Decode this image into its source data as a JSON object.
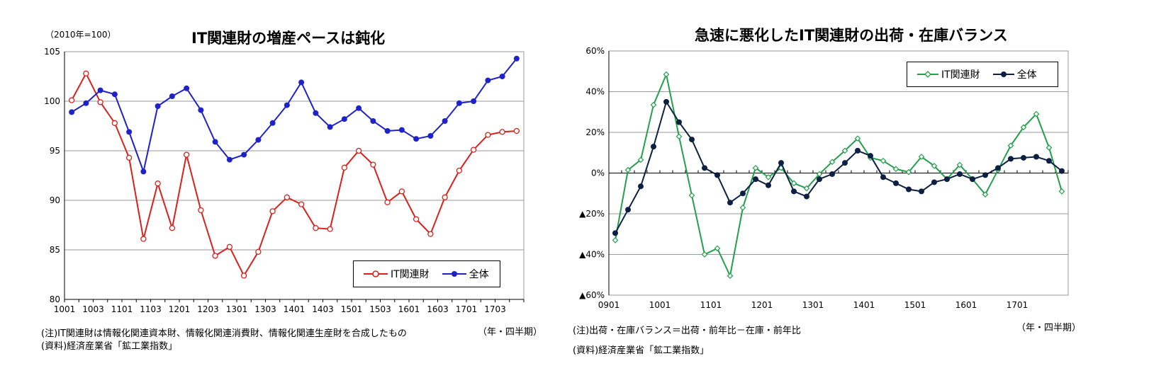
{
  "chart_data": [
    {
      "type": "line",
      "title": "IT関連財の増産ペースは鈍化",
      "unit_label": "（2010年=100）",
      "xlabel": "（年・四半期）",
      "ylim": [
        80,
        105
      ],
      "y_ticks": [
        "80",
        "85",
        "90",
        "95",
        "100",
        "105"
      ],
      "x_tick_labels": [
        "1001",
        "1003",
        "1101",
        "1103",
        "1201",
        "1203",
        "1301",
        "1303",
        "1401",
        "1403",
        "1501",
        "1503",
        "1601",
        "1603",
        "1701",
        "1703"
      ],
      "legend": "bottom-right",
      "grid": true,
      "series": [
        {
          "name": "IT関連財",
          "color": "#d9211c",
          "marker": "open-circle",
          "values": [
            100.1,
            102.8,
            99.9,
            97.8,
            94.3,
            86.1,
            91.7,
            87.2,
            94.6,
            89.0,
            84.4,
            85.3,
            82.4,
            84.8,
            88.9,
            90.3,
            89.6,
            87.2,
            87.1,
            93.3,
            95.0,
            93.6,
            89.8,
            90.9,
            88.1,
            86.6,
            90.3,
            93.0,
            95.1,
            96.6,
            96.9,
            97.0
          ]
        },
        {
          "name": "全体",
          "color": "#1f22c9",
          "marker": "filled-circle",
          "values": [
            98.9,
            99.8,
            101.1,
            100.7,
            96.9,
            92.9,
            99.5,
            100.5,
            101.3,
            99.1,
            95.9,
            94.1,
            94.6,
            96.1,
            97.8,
            99.6,
            101.9,
            98.8,
            97.4,
            98.2,
            99.3,
            98.0,
            97.0,
            97.1,
            96.2,
            96.5,
            98.0,
            99.8,
            100.0,
            102.1,
            102.5,
            104.3
          ]
        }
      ]
    },
    {
      "type": "line",
      "title": "急速に悪化したIT関連財の出荷・在庫バランス",
      "xlabel": "（年・四半期）",
      "ylim": [
        -60,
        60
      ],
      "y_ticks": [
        "▲60%",
        "▲40%",
        "▲20%",
        "0%",
        "20%",
        "40%",
        "60%"
      ],
      "x_tick_labels": [
        "0901",
        "1001",
        "1101",
        "1201",
        "1301",
        "1401",
        "1501",
        "1601",
        "1701"
      ],
      "legend": "top-right",
      "grid": true,
      "series": [
        {
          "name": "IT関連財",
          "color": "#22a04b",
          "marker": "open-diamond",
          "values": [
            -33,
            1.5,
            6.5,
            33.5,
            48.5,
            18,
            -11,
            -40,
            -37,
            -50.5,
            -17,
            2.5,
            -2,
            2.5,
            -5,
            -7.5,
            -0.5,
            5.5,
            11,
            17,
            7.5,
            6,
            2,
            0.5,
            8,
            3.5,
            -3,
            4,
            -3,
            -10.5,
            1.5,
            13.5,
            22.5,
            29,
            12.5,
            -9
          ]
        },
        {
          "name": "全体",
          "color": "#0d2044",
          "marker": "filled-circle",
          "values": [
            -29.5,
            -18,
            -6.5,
            13,
            35,
            25,
            16.5,
            2.5,
            -1,
            -14.5,
            -10,
            -3,
            -6,
            5,
            -9,
            -11.5,
            -3,
            -0.5,
            5,
            11,
            8.5,
            -2,
            -5,
            -8,
            -9,
            -4.5,
            -3,
            -0.5,
            -3,
            -1,
            2.5,
            7,
            7.5,
            8,
            6,
            1
          ]
        }
      ]
    }
  ],
  "notes": {
    "left_note1": "(注)IT関連財は情報化関連資本財、情報化関連消費財、情報化関連生産財を合成したもの",
    "left_note2": "(資料)経済産業省「鉱工業指数」",
    "right_note1": "(注)出荷・在庫バランス＝出荷・前年比－在庫・前年比",
    "right_note2": "(資料)経済産業省「鉱工業指数」"
  },
  "colors": {
    "grid": "#9a9a9a",
    "axis": "#000000"
  }
}
